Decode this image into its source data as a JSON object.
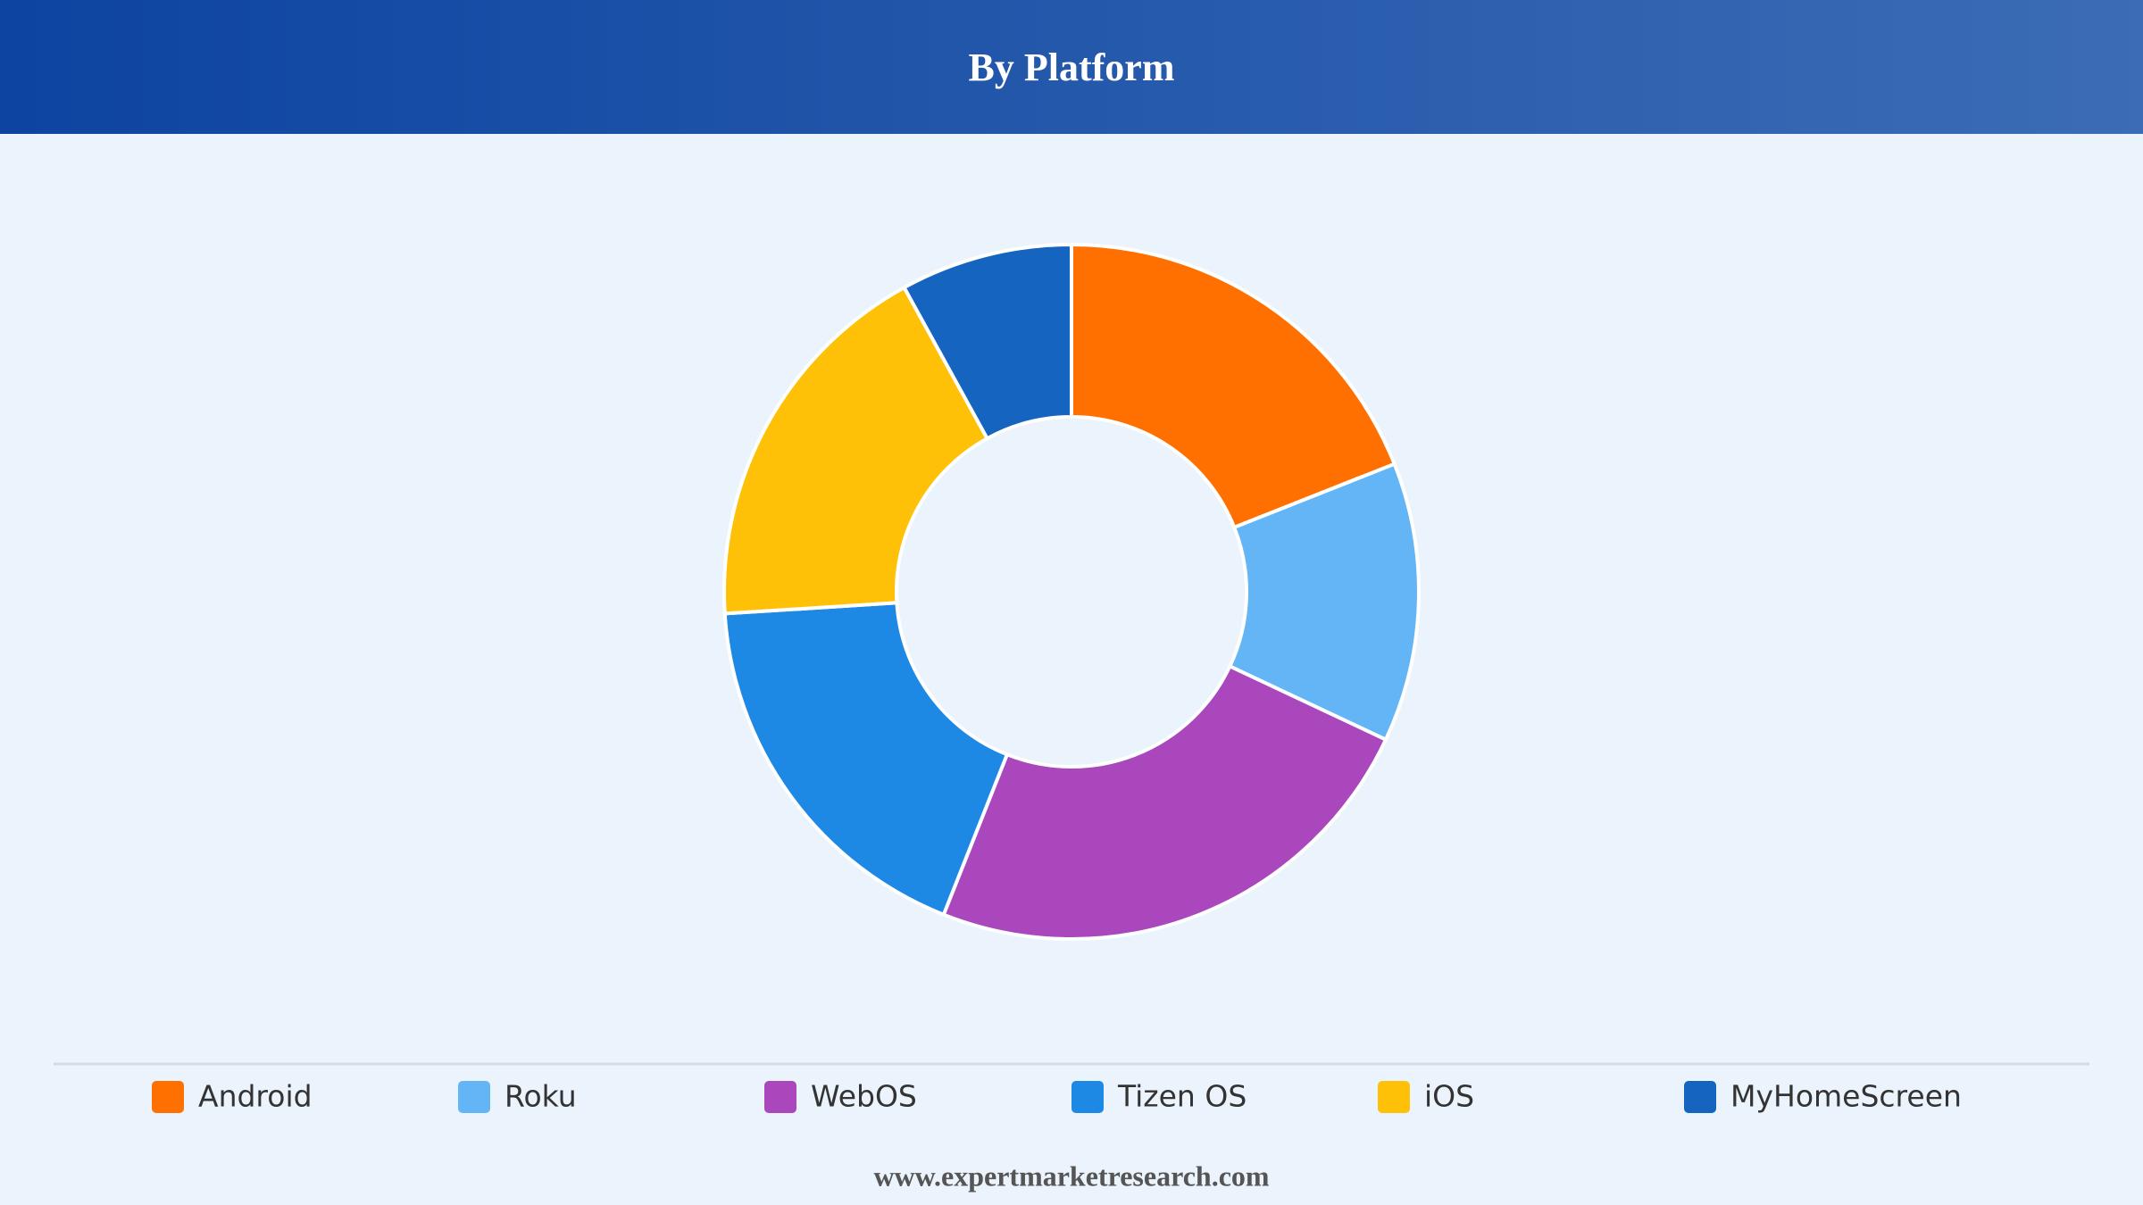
{
  "chart_data": {
    "type": "donut",
    "title": "By Platform",
    "categories": [
      "Android",
      "Roku",
      "WebOS",
      "Tizen OS",
      "iOS",
      "MyHomeScreen"
    ],
    "values": [
      19,
      13,
      24,
      18,
      18,
      8
    ],
    "colors": [
      "#ff7000",
      "#64b5f6",
      "#ab47bc",
      "#1e88e5",
      "#ffc107",
      "#1565c0"
    ],
    "source": "www.expertmarketresearch.com"
  }
}
